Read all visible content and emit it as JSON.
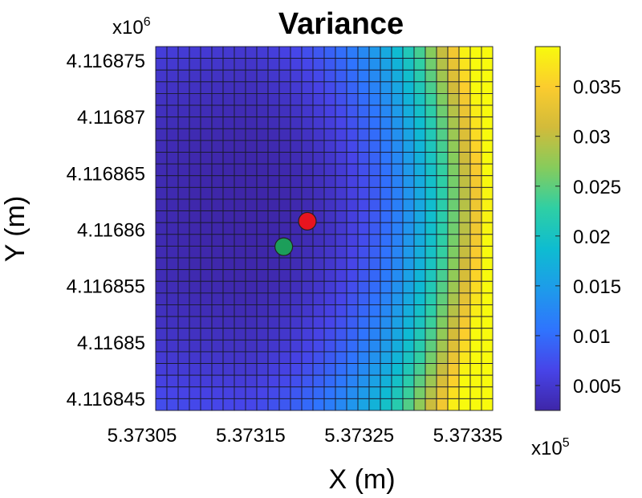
{
  "chart_data": {
    "type": "heatmap",
    "title": "Variance",
    "xlabel": "X (m)",
    "ylabel": "Y (m)",
    "x_multiplier": {
      "base": "x10",
      "exp": "5"
    },
    "y_multiplier": {
      "base": "x10",
      "exp": "6"
    },
    "x_ticks": [
      "5.37305",
      "5.37315",
      "5.37325",
      "5.37335"
    ],
    "y_ticks": [
      "4.116875",
      "4.11687",
      "4.116865",
      "4.11686",
      "4.116855",
      "4.11685",
      "4.116845"
    ],
    "grid": {
      "cols": 30,
      "rows": 31
    },
    "field": {
      "min_center": [
        0.28,
        0.55
      ],
      "base": 0.0025,
      "coefficients": {
        "x": 0.009,
        "x_right": 0.09,
        "y_pow": 0.02,
        "cross": 0.035
      }
    },
    "colorbar": {
      "range": [
        0.0025,
        0.039
      ],
      "ticks": [
        0.005,
        0.01,
        0.015,
        0.02,
        0.025,
        0.03,
        0.035
      ],
      "tick_labels": [
        "0.005",
        "0.01",
        "0.015",
        "0.02",
        "0.025",
        "0.03",
        "0.035"
      ],
      "colormap": "parula",
      "colors": [
        "#3e26a8",
        "#4744e8",
        "#2f74fe",
        "#1e9bea",
        "#0ebcd1",
        "#2fcfa4",
        "#86cc5c",
        "#d2bb3a",
        "#fbcc2e",
        "#f8fa0d"
      ]
    },
    "markers": [
      {
        "name": "red-point",
        "x": 0.45,
        "y": 0.52,
        "color": "#e8141e"
      },
      {
        "name": "green-point",
        "x": 0.38,
        "y": 0.45,
        "color": "#1c9e5a"
      }
    ]
  }
}
